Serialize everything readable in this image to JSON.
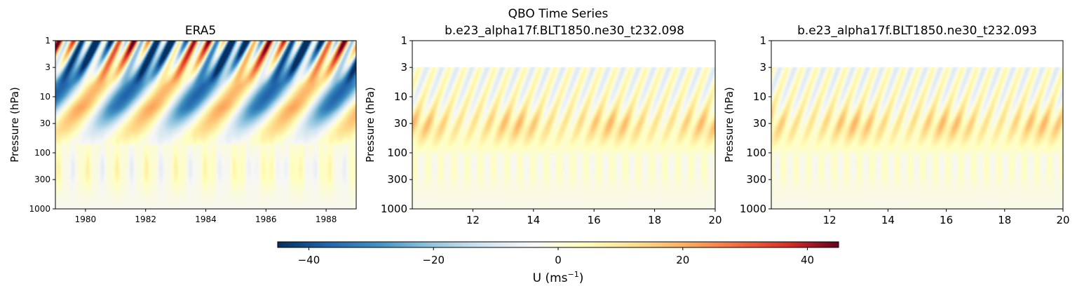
{
  "figure": {
    "suptitle": "QBO Time Series"
  },
  "colorbar": {
    "label_main": "U (ms",
    "label_exp": "−1",
    "label_close": ")",
    "vmin": -45,
    "vmax": 45,
    "ticks": [
      -40,
      -20,
      0,
      20,
      40
    ],
    "tick_labels": [
      "−40",
      "−20",
      "0",
      "20",
      "40"
    ],
    "colormap": "RdYlBu_r",
    "stops": [
      "#053061",
      "#2166ac",
      "#4393c3",
      "#92c5de",
      "#d1e5f0",
      "#f7f7f7",
      "#ffffbf",
      "#fee090",
      "#fdae61",
      "#f46d43",
      "#d73027",
      "#67001f"
    ]
  },
  "chart_data": [
    {
      "type": "heatmap",
      "title": "ERA5",
      "xlabel": "",
      "ylabel": "Pressure (hPa)",
      "y_scale": "log",
      "ylim": [
        1000,
        1
      ],
      "xlim": [
        1979,
        1989
      ],
      "xticks": [
        1980,
        1982,
        1984,
        1986,
        1988
      ],
      "xtick_labels": [
        "1980",
        "1982",
        "1984",
        "1986",
        "1988"
      ],
      "yticks": [
        1,
        3,
        10,
        30,
        100,
        300,
        1000
      ],
      "ytick_labels": [
        "1",
        "3",
        "10",
        "30",
        "100",
        "300",
        "1000"
      ],
      "data_top_hPa": 1,
      "variable": "U",
      "units": "m/s"
    },
    {
      "type": "heatmap",
      "title": "b.e23_alpha17f.BLT1850.ne30_t232.098",
      "xlabel": "",
      "ylabel": "Pressure (hPa)",
      "y_scale": "log",
      "ylim": [
        1000,
        1
      ],
      "xlim": [
        10,
        20
      ],
      "xticks": [
        12,
        14,
        16,
        18,
        20
      ],
      "xtick_labels": [
        "12",
        "14",
        "16",
        "18",
        "20"
      ],
      "yticks": [
        1,
        3,
        10,
        30,
        100,
        300,
        1000
      ],
      "ytick_labels": [
        "1",
        "3",
        "10",
        "30",
        "100",
        "300",
        "1000"
      ],
      "data_top_hPa": 3,
      "variable": "U",
      "units": "m/s"
    },
    {
      "type": "heatmap",
      "title": "b.e23_alpha17f.BLT1850.ne30_t232.093",
      "xlabel": "",
      "ylabel": "Pressure (hPa)",
      "y_scale": "log",
      "ylim": [
        1000,
        1
      ],
      "xlim": [
        10,
        20
      ],
      "xticks": [
        12,
        14,
        16,
        18,
        20
      ],
      "xtick_labels": [
        "12",
        "14",
        "16",
        "18",
        "20"
      ],
      "yticks": [
        1,
        3,
        10,
        30,
        100,
        300,
        1000
      ],
      "ytick_labels": [
        "1",
        "3",
        "10",
        "30",
        "100",
        "300",
        "1000"
      ],
      "data_top_hPa": 3,
      "variable": "U",
      "units": "m/s"
    }
  ]
}
